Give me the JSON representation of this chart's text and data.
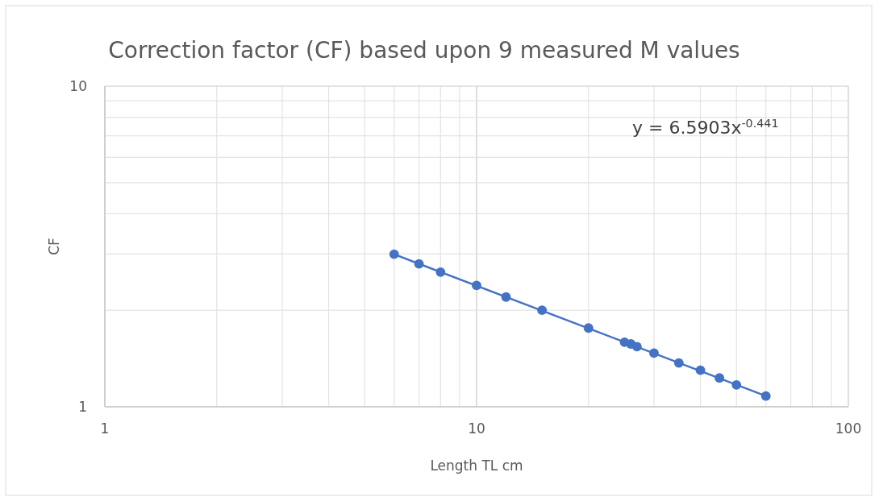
{
  "chart_data": {
    "type": "scatter",
    "title": "Correction factor (CF) based upon 9 measured M values",
    "xlabel": "Length TL cm",
    "ylabel": "CF",
    "log": "xy",
    "grid": true,
    "xlim": [
      1,
      100
    ],
    "xticks": [
      1,
      10,
      100
    ],
    "ylim": [
      1,
      10
    ],
    "yticks": [
      1,
      10
    ],
    "annotations": [
      "y = 6.5903x$^{-0.441}$"
    ],
    "series": [
      {
        "marker": "circle",
        "color": "#4472c4",
        "x": [
          6,
          7,
          8,
          10,
          12,
          15,
          20,
          25,
          26,
          27,
          30,
          35,
          40,
          45,
          50,
          60
        ],
        "values": [
          2.99,
          2.79,
          2.63,
          2.39,
          2.2,
          2.0,
          1.76,
          1.59,
          1.57,
          1.54,
          1.47,
          1.37,
          1.3,
          1.23,
          1.17,
          1.08
        ]
      },
      {
        "type": "line",
        "marker": "none",
        "color": "#4472c4",
        "x": [
          6,
          60
        ],
        "values": [
          2.99,
          1.08
        ]
      }
    ]
  }
}
